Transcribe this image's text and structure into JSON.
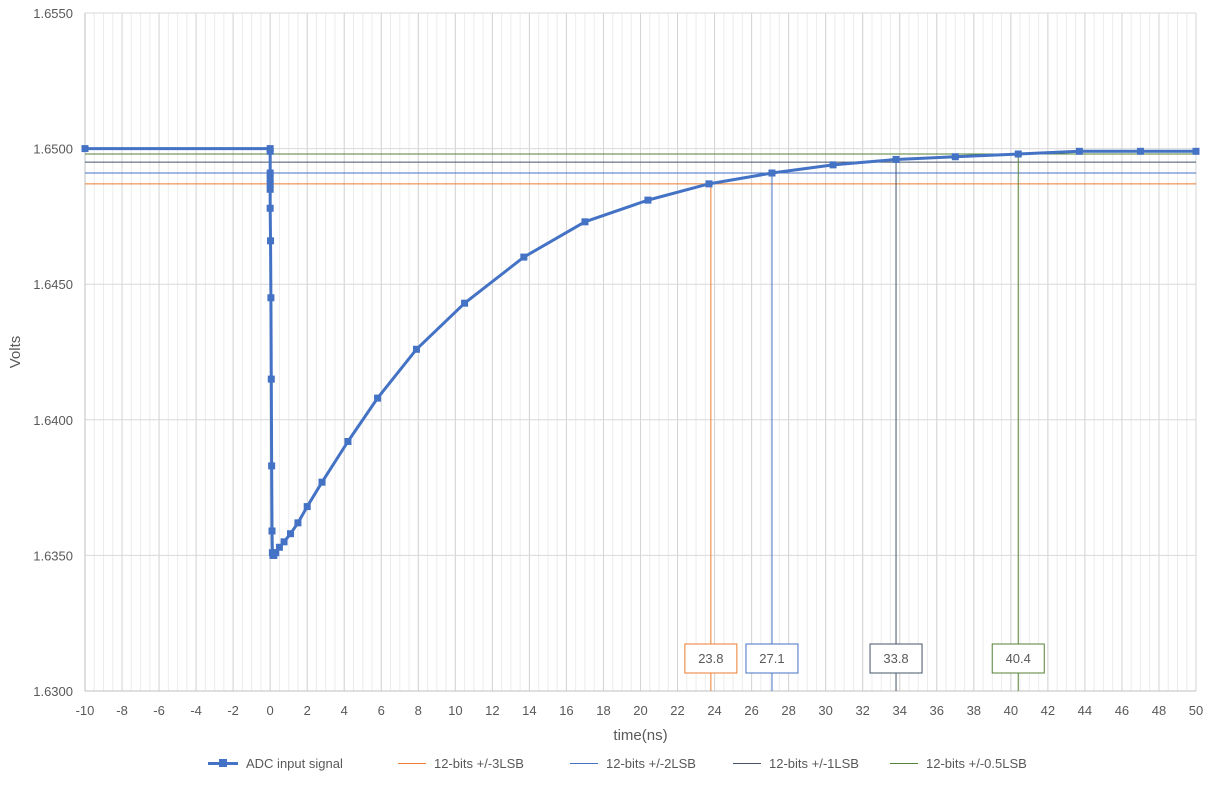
{
  "chart_data": {
    "type": "line",
    "xlabel": "time(ns)",
    "ylabel": "Volts",
    "xlim": [
      -10,
      50
    ],
    "ylim": [
      1.63,
      1.655
    ],
    "x_ticks": [
      "-10",
      "-8",
      "-6",
      "-4",
      "-2",
      "0",
      "2",
      "4",
      "6",
      "8",
      "10",
      "12",
      "14",
      "16",
      "18",
      "20",
      "22",
      "24",
      "26",
      "28",
      "30",
      "32",
      "34",
      "36",
      "38",
      "40",
      "42",
      "44",
      "46",
      "48",
      "50"
    ],
    "y_ticks": [
      "1.6300",
      "1.6350",
      "1.6400",
      "1.6450",
      "1.6500",
      "1.6550"
    ],
    "grid": true,
    "legend_position": "bottom",
    "series": [
      {
        "name": "ADC input signal",
        "color": "#4472c4",
        "marker": "square",
        "x": [
          -10,
          0,
          0,
          0,
          0,
          0,
          0,
          0,
          0.02,
          0.04,
          0.06,
          0.08,
          0.1,
          0.12,
          0.15,
          0.2,
          0.3,
          0.5,
          0.75,
          1.1,
          1.5,
          2.0,
          2.8,
          4.2,
          5.8,
          7.9,
          10.5,
          13.7,
          17.0,
          20.4,
          23.7,
          27.1,
          30.4,
          33.8,
          37.0,
          40.4,
          43.7,
          47.0,
          50.0
        ],
        "y": [
          1.65,
          1.65,
          1.6499,
          1.6491,
          1.6489,
          1.6487,
          1.6485,
          1.6478,
          1.6466,
          1.6445,
          1.6415,
          1.6383,
          1.6359,
          1.6351,
          1.635,
          1.635,
          1.6351,
          1.6353,
          1.6355,
          1.6358,
          1.6362,
          1.6368,
          1.6377,
          1.6392,
          1.6408,
          1.6426,
          1.6443,
          1.646,
          1.6473,
          1.6481,
          1.6487,
          1.6491,
          1.6494,
          1.6496,
          1.6497,
          1.6498,
          1.6499,
          1.6499,
          1.6499
        ]
      },
      {
        "name": "12-bits +/-3LSB",
        "color": "#ed7d31",
        "level": 1.6487,
        "crossing_x": 23.8,
        "label": "23.8"
      },
      {
        "name": "12-bits +/-2LSB",
        "color": "#4472c4",
        "level": 1.6491,
        "crossing_x": 27.1,
        "label": "27.1"
      },
      {
        "name": "12-bits +/-1LSB",
        "color": "#44546a",
        "level": 1.6495,
        "crossing_x": 33.8,
        "label": "33.8"
      },
      {
        "name": "12-bits +/-0.5LSB",
        "color": "#548235",
        "level": 1.6498,
        "crossing_x": 40.4,
        "label": "40.4"
      }
    ]
  }
}
